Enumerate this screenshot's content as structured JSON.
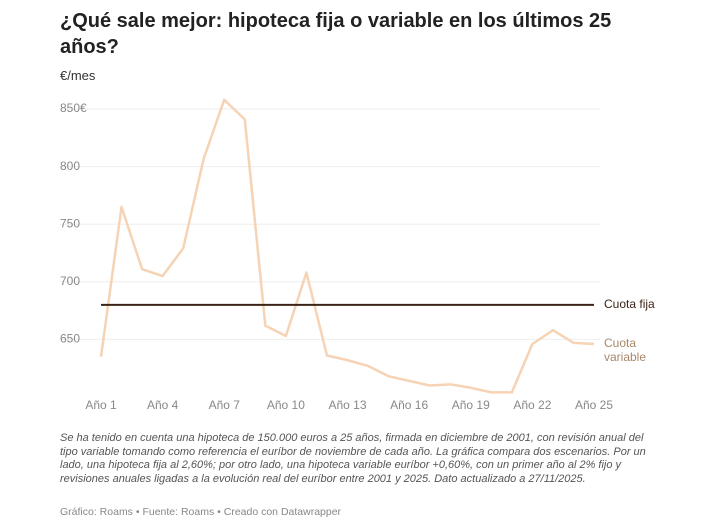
{
  "chart_data": {
    "type": "line",
    "title": "¿Qué sale mejor: hipoteca fija o variable en los últimos 25 años?",
    "y_label": "€/mes",
    "categories": [
      "Año 1",
      null,
      null,
      "Año 4",
      null,
      null,
      "Año 7",
      null,
      null,
      "Año 10",
      null,
      null,
      "Año 13",
      null,
      null,
      "Año 16",
      null,
      null,
      "Año 19",
      null,
      null,
      "Año 22",
      null,
      null,
      "Año 25"
    ],
    "series": [
      {
        "name": "Cuota fija",
        "color": "#3b2417",
        "values": [
          680,
          680,
          680,
          680,
          680,
          680,
          680,
          680,
          680,
          680,
          680,
          680,
          680,
          680,
          680,
          680,
          680,
          680,
          680,
          680,
          680,
          680,
          680,
          680,
          680
        ]
      },
      {
        "name": "Cuota variable",
        "color": "#f6d3b4",
        "values": [
          635,
          765,
          711,
          705,
          729,
          807,
          858,
          841,
          662,
          653,
          708,
          636,
          632,
          627,
          618,
          614,
          610,
          611,
          608,
          604,
          604,
          646,
          658,
          647,
          646
        ]
      }
    ],
    "ylim": [
      600,
      860
    ],
    "yticks": [
      650,
      700,
      750,
      800,
      {
        "value": 850,
        "label": "850€"
      }
    ],
    "grid": true,
    "note": "Se ha tenido en cuenta una hipoteca de 150.000 euros a 25 años, firmada en diciembre de 2001, con revisión anual del tipo variable tomando como referencia el euríbor de noviembre de cada año. La gráfica compara dos escenarios. Por un lado, una hipoteca fija al 2,60%; por otro lado, una hipoteca variable euríbor +0,60%, con un primer año al 2% fijo y revisiones anuales ligadas a la evolución real del euríbor entre 2001 y 2025. Dato actualizado a 27/11/2025.",
    "credit": "Gráfico: Roams • Fuente: Roams • Creado con Datawrapper"
  }
}
